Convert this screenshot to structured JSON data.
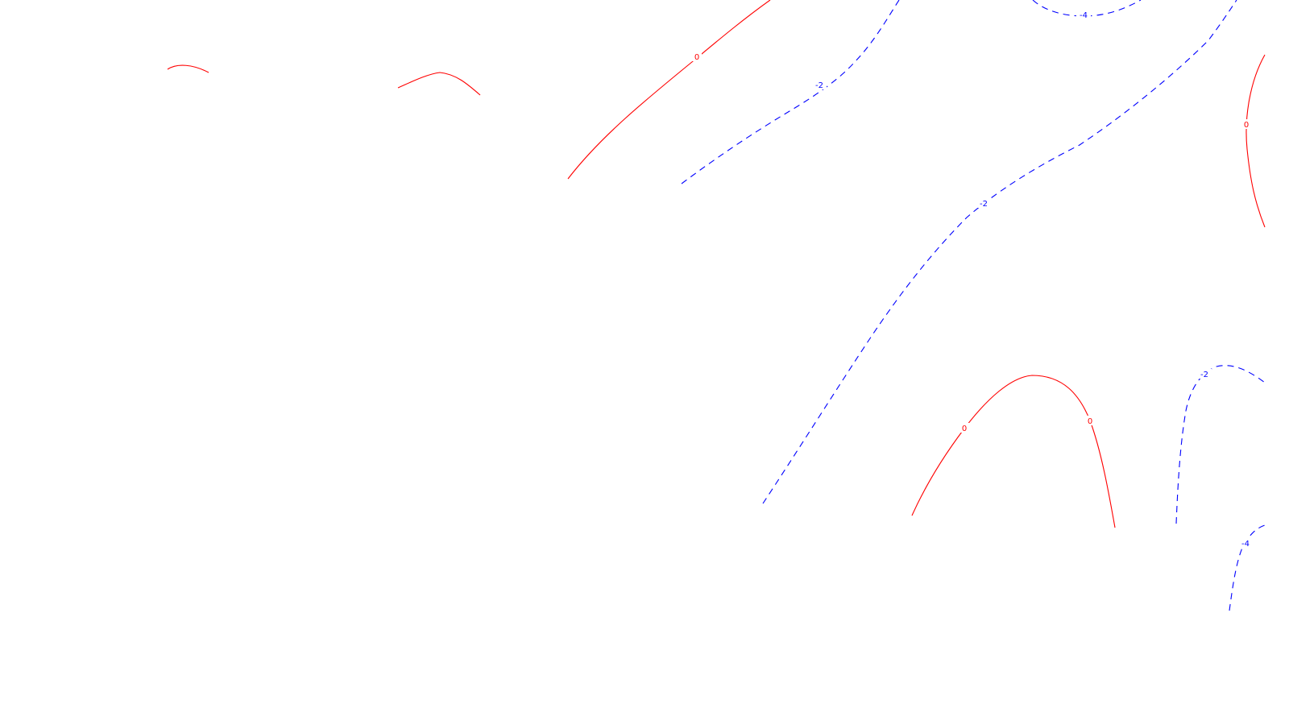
{
  "colors": {
    "background": "#ffffff",
    "positive_contour": "#ff0000",
    "negative_contour": "#0000ff"
  },
  "contours": [
    {
      "id": "c0-a",
      "value": "0",
      "style": "solid"
    },
    {
      "id": "c0-b",
      "value": "0",
      "style": "solid"
    },
    {
      "id": "c0-c",
      "value": "0",
      "style": "solid"
    },
    {
      "id": "c0-d",
      "value": "0",
      "style": "solid"
    },
    {
      "id": "c0-e",
      "value": "0",
      "style": "solid"
    },
    {
      "id": "cm2-a",
      "value": "-2",
      "style": "dashed"
    },
    {
      "id": "cm2-b",
      "value": "-2",
      "style": "dashed"
    },
    {
      "id": "cm2-c",
      "value": "-2",
      "style": "dashed"
    },
    {
      "id": "cm4-a",
      "value": "-4",
      "style": "dashed"
    },
    {
      "id": "cm4-b",
      "value": "-4",
      "style": "dashed"
    }
  ],
  "labels": {
    "zero": "0",
    "minus2": "-2",
    "minus4": "-4"
  }
}
